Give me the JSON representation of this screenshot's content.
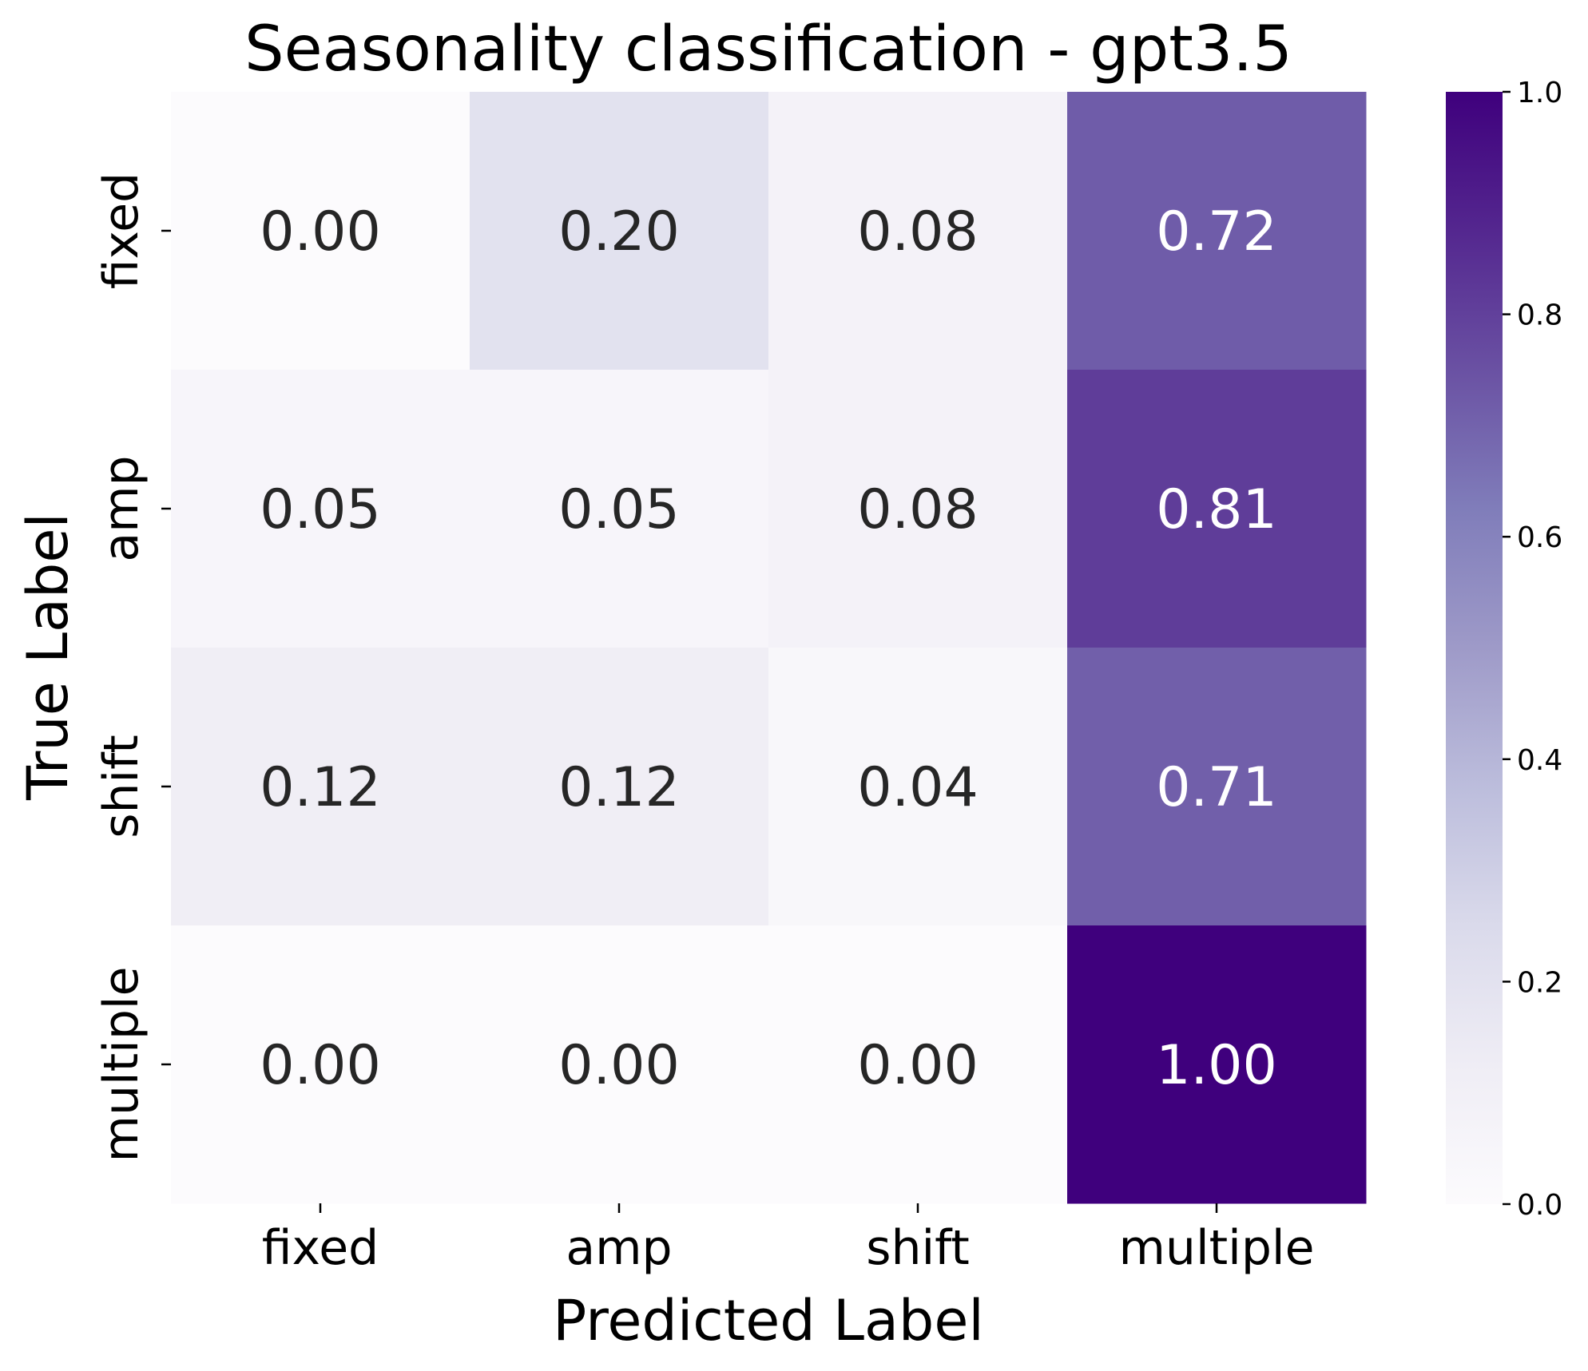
{
  "chart_data": {
    "type": "heatmap",
    "title": "Seasonality classification - gpt3.5",
    "xlabel": "Predicted Label",
    "ylabel": "True Label",
    "x_categories": [
      "fixed",
      "amp",
      "shift",
      "multiple"
    ],
    "y_categories": [
      "fixed",
      "amp",
      "shift",
      "multiple"
    ],
    "values": [
      [
        0.0,
        0.2,
        0.08,
        0.72
      ],
      [
        0.05,
        0.05,
        0.08,
        0.81
      ],
      [
        0.12,
        0.12,
        0.04,
        0.71
      ],
      [
        0.0,
        0.0,
        0.0,
        1.0
      ]
    ],
    "value_format": "2 decimals",
    "colorbar": {
      "colormap": "Purples",
      "range": [
        0.0,
        1.0
      ],
      "ticks": [
        "0.0",
        "0.2",
        "0.4",
        "0.6",
        "0.8",
        "1.0"
      ],
      "position": "right"
    },
    "grid": false
  }
}
